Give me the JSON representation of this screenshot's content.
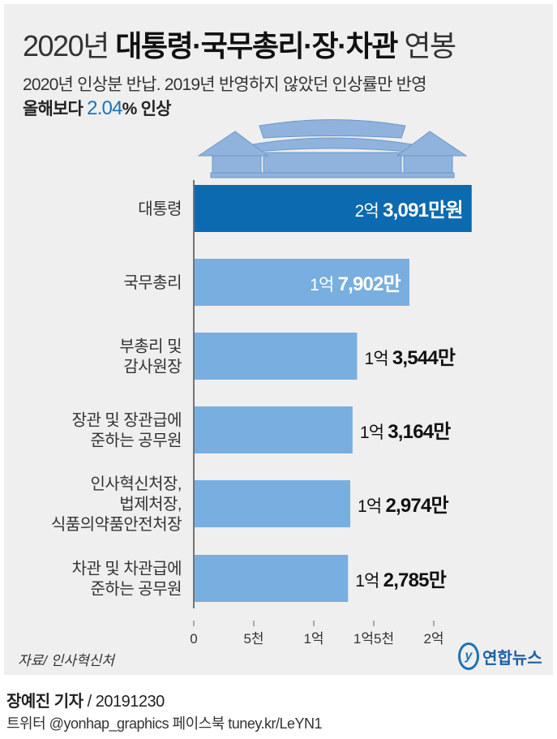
{
  "title": {
    "prefix": "2020년",
    "bold": "대통령·국무총리·장·차관",
    "suffix": "연봉"
  },
  "subtitle": "2020년 인상분 반납. 2019년 반영하지 않았던 인상률만 반영",
  "subtitle2": {
    "before": "올해보다",
    "value": "2.04",
    "unit": "%",
    "after": "인상"
  },
  "chart_data": {
    "type": "bar",
    "orientation": "horizontal",
    "unit": "만원",
    "categories": [
      "대통령",
      "국무총리",
      "부총리 및\n감사원장",
      "장관 및 장관급에\n준하는 공무원",
      "인사혁신처장,\n법제처장,\n식품의약품안전처장",
      "차관 및 차관급에\n준하는 공무원"
    ],
    "values": [
      23091,
      17902,
      13544,
      13164,
      12974,
      12785
    ],
    "labels": [
      [
        "2억",
        "3,091만원"
      ],
      [
        "1억",
        "7,902만"
      ],
      [
        "1억",
        "3,544만"
      ],
      [
        "1억",
        "3,164만"
      ],
      [
        "1억",
        "2,974만"
      ],
      [
        "1억",
        "2,785만"
      ]
    ],
    "xlim": [
      0,
      23091
    ],
    "xticks": [
      0,
      5000,
      10000,
      15000,
      20000
    ],
    "xtick_labels": [
      "0",
      "5천",
      "1억",
      "1억5천",
      "2억"
    ],
    "colors": {
      "highlight": "#0b6ab0",
      "bar": "#78aee0"
    },
    "grid": false
  },
  "source": "자료/ 인사혁신처",
  "logo": "연합뉴스",
  "byline": {
    "name": "장예진 기자",
    "date": "/ 20191230"
  },
  "social": "트위터 @yonhap_graphics  페이스북 tuney.kr/LeYN1"
}
